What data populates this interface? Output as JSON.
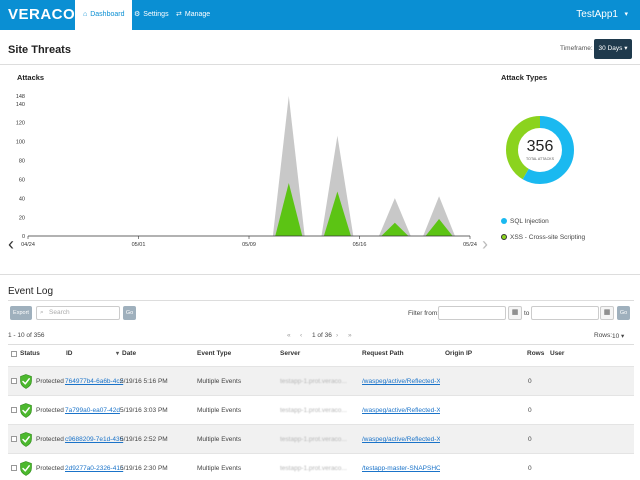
{
  "nav": {
    "logo": "VERACODE",
    "items": [
      {
        "label": "Dashboard",
        "icon": "home-icon"
      },
      {
        "label": "Settings",
        "icon": "gear-icon"
      },
      {
        "label": "Manage",
        "icon": "arrows-icon"
      }
    ],
    "app_name": "TestApp1"
  },
  "site_threats": {
    "title": "Site Threats",
    "timeframe_label": "Timeframe:",
    "timeframe_value": "30 Days"
  },
  "attacks": {
    "title": "Attacks",
    "chart_data": {
      "type": "area",
      "title": "Attacks",
      "x_ticks": [
        "04/24",
        "05/01",
        "05/09",
        "05/16",
        "05/24"
      ],
      "y_ticks": [
        0,
        20,
        40,
        60,
        80,
        100,
        120,
        140,
        148
      ],
      "ylim": [
        0,
        148
      ],
      "series": [
        {
          "name": "",
          "color": "#c8c8c8",
          "peaks": [
            {
              "x": 0.59,
              "value": 148
            },
            {
              "x": 0.7,
              "value": 106
            },
            {
              "x": 0.83,
              "value": 40
            },
            {
              "x": 0.93,
              "value": 42
            }
          ]
        },
        {
          "name": "",
          "color": "#5cc414",
          "peaks": [
            {
              "x": 0.59,
              "value": 56
            },
            {
              "x": 0.7,
              "value": 47
            },
            {
              "x": 0.83,
              "value": 14
            },
            {
              "x": 0.93,
              "value": 18
            }
          ]
        }
      ]
    }
  },
  "attack_types": {
    "title": "Attack Types",
    "total": "356",
    "total_label": "TOTAL ATTACKS",
    "chart_data": {
      "type": "pie",
      "slices": [
        {
          "label": "SQL Injection",
          "value": 208,
          "color": "#1ab9f0"
        },
        {
          "label": "XSS - Cross-site Scripting",
          "value": 148,
          "color": "#8bd31e"
        }
      ]
    }
  },
  "event_log": {
    "title": "Event Log",
    "export_label": "Export",
    "search_placeholder": "Search",
    "go_label": "Go",
    "filter_from": "Filter from:",
    "to": "to",
    "range_text": "1 - 10 of 356",
    "pager": {
      "first": "«",
      "prev": "‹",
      "page_text": "1 of 36",
      "next": "›",
      "last": "»"
    },
    "rows_label": "Rows:",
    "rows_value": "10",
    "columns": [
      "Status",
      "ID",
      "Date",
      "Event Type",
      "Server",
      "Request Path",
      "Origin IP",
      "Rows",
      "User"
    ],
    "rows": [
      {
        "status": "Protected",
        "id": "764977b4-6a6b-4c2",
        "date": "5/19/16 5:16 PM",
        "event_type": "Multiple Events",
        "server": "testapp-1.prot.veraco...",
        "path": "/waspeg/active/Reflected-XSS/RI",
        "ip": "",
        "rows": "0"
      },
      {
        "status": "Protected",
        "id": "7a799a0-ea07-42d",
        "date": "5/19/16 3:03 PM",
        "event_type": "Multiple Events",
        "server": "testapp-1.prot.veraco...",
        "path": "/waspeg/active/Reflected-XSS/RI",
        "ip": "",
        "rows": "0"
      },
      {
        "status": "Protected",
        "id": "c9688209-7e1d-436",
        "date": "5/19/16 2:52 PM",
        "event_type": "Multiple Events",
        "server": "testapp-1.prot.veraco...",
        "path": "/waspeg/active/Reflected-XSS/RI",
        "ip": "",
        "rows": "0"
      },
      {
        "status": "Protected",
        "id": "2d9277a0-2326-41c",
        "date": "5/19/16 2:30 PM",
        "event_type": "Multiple Events",
        "server": "testapp-1.prot.veraco...",
        "path": "/testapp-master-SNAPSHOT/tml",
        "ip": "",
        "rows": "0"
      }
    ]
  },
  "colors": {
    "brand": "#0a8fd3",
    "sql": "#1ab9f0",
    "xss": "#8bd31e",
    "green_area": "#5cc414"
  }
}
